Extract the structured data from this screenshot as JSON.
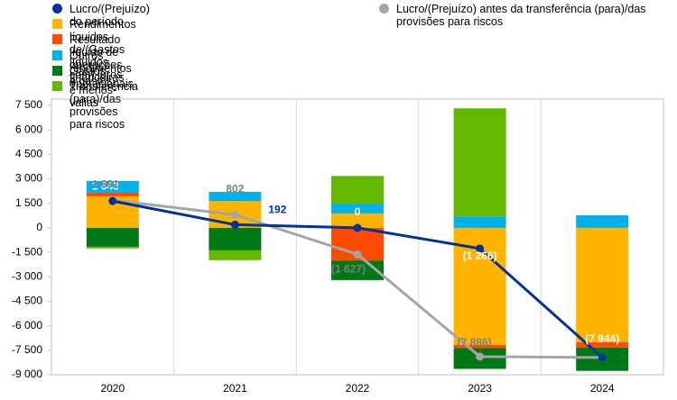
{
  "chart_data": {
    "type": "stacked-bar-line",
    "categories": [
      "2020",
      "2021",
      "2022",
      "2023",
      "2024"
    ],
    "series": [
      {
        "name": "Rendimentos líquidos de/(Gastos líquidos com) juros",
        "color": "#ffb400",
        "values": [
          1930,
          1650,
          880,
          -7170,
          -7000
        ]
      },
      {
        "name": "Resultado líquido de operações financeiras e menos-valias",
        "color": "#ff4b00",
        "values": [
          220,
          0,
          -2000,
          -200,
          -330
        ]
      },
      {
        "name": "Outros rendimentos e gastos",
        "color": "#00b1ea",
        "values": [
          720,
          550,
          600,
          700,
          770
        ]
      },
      {
        "name": "Gastos operacionais",
        "color": "#007816",
        "values": [
          -1160,
          -1380,
          -1200,
          -1270,
          -1430
        ]
      },
      {
        "name": "Transferência (para)/das provisões para riscos",
        "color": "#65b800",
        "values": [
          -100,
          -600,
          1700,
          6620,
          0
        ]
      }
    ],
    "lines": [
      {
        "name": "Lucro/(Prejuízo) do período",
        "color": "#003299",
        "values": [
          1643,
          192,
          0,
          -1266,
          -7944
        ],
        "value_labels": [
          "1 643",
          "192",
          "0",
          "(1 266)",
          "(7 944)"
        ]
      },
      {
        "name": "Lucro/(Prejuízo) antes da transferência (para)/das provisões para riscos",
        "color": "#a5a5a5",
        "values": [
          1691,
          802,
          -1627,
          -7886,
          -7944
        ],
        "value_labels": [
          "1 691",
          "802",
          "(1 627)",
          "(7 886)",
          null
        ]
      }
    ],
    "ylim": [
      -9000,
      7500
    ],
    "yticks": [
      {
        "value": 7500,
        "label": "7 500"
      },
      {
        "value": 6000,
        "label": "6 000"
      },
      {
        "value": 4500,
        "label": "4 500"
      },
      {
        "value": 3000,
        "label": "3 000"
      },
      {
        "value": 1500,
        "label": "1 500"
      },
      0,
      {
        "value": -1500,
        "label": "-1 500"
      },
      {
        "value": -3000,
        "label": "-3 000"
      },
      {
        "value": -4500,
        "label": "-4 500"
      },
      {
        "value": -6000,
        "label": "-6 000"
      },
      {
        "value": -7500,
        "label": "-7 500"
      },
      {
        "value": -9000,
        "label": "-9 000"
      }
    ]
  }
}
